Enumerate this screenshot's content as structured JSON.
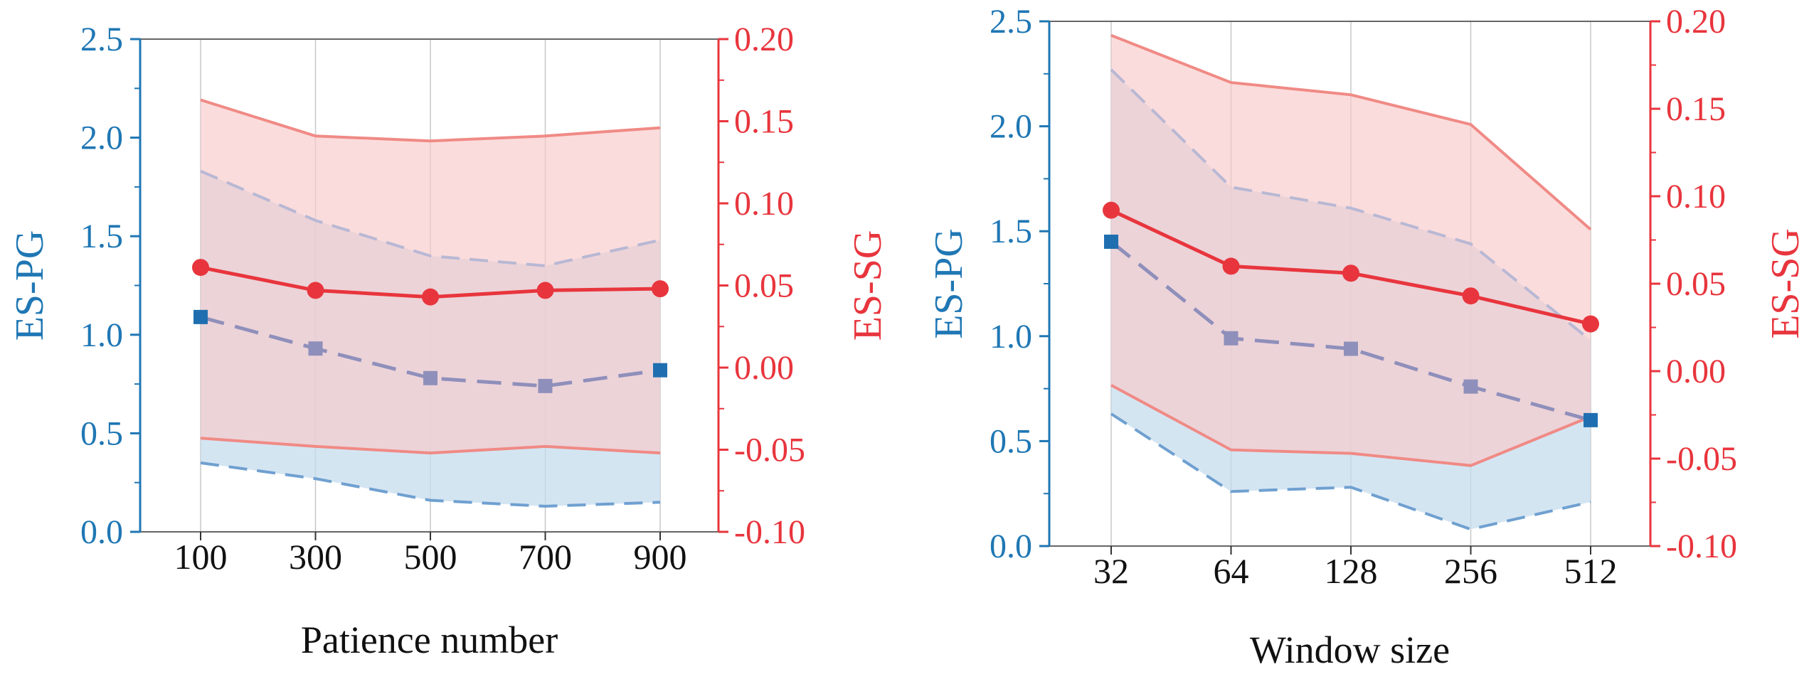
{
  "colors": {
    "left_axis": "#1f77b4",
    "right_axis": "#e8353d",
    "es_sg_line": "#e8353d",
    "es_sg_band_edge": "#f08a85",
    "es_sg_band_fill": "#f9c9ca",
    "es_pg_line": "#8f8fbb",
    "es_pg_marker_end": "#1f6fb0",
    "es_pg_band_upper_edge": "#b8b8d4",
    "es_pg_band_lower_edge": "#6fa0d0",
    "es_pg_band_fill": "#c6dcee",
    "grid": "#c8c8c8",
    "frame": "#666666"
  },
  "chart_data": [
    {
      "type": "line",
      "xlabel": "Patience number",
      "ylabel_left": "ES-PG",
      "ylabel_right": "ES-SG",
      "categories": [
        "100",
        "300",
        "500",
        "700",
        "900"
      ],
      "ylim_left": [
        0,
        2.5
      ],
      "ylim_right": [
        -0.1,
        0.2
      ],
      "yticks_left": [
        "0.0",
        "0.5",
        "1.0",
        "1.5",
        "2.0",
        "2.5"
      ],
      "yticks_right": [
        "-0.10",
        "-0.05",
        "0.00",
        "0.05",
        "0.10",
        "0.15",
        "0.20"
      ],
      "grid": "vertical",
      "series": [
        {
          "axis": "left",
          "style": "dashed-square",
          "values": [
            1.09,
            0.93,
            0.78,
            0.74,
            0.82
          ],
          "band_upper": [
            1.83,
            1.58,
            1.4,
            1.35,
            1.48
          ],
          "band_lower": [
            0.35,
            0.27,
            0.16,
            0.13,
            0.15
          ]
        },
        {
          "axis": "right",
          "style": "solid-circle",
          "values": [
            0.061,
            0.047,
            0.043,
            0.047,
            0.048
          ],
          "band_upper": [
            0.163,
            0.141,
            0.138,
            0.141,
            0.146
          ],
          "band_lower": [
            -0.043,
            -0.048,
            -0.052,
            -0.048,
            -0.052
          ]
        }
      ]
    },
    {
      "type": "line",
      "xlabel": "Window size",
      "ylabel_left": "ES-PG",
      "ylabel_right": "ES-SG",
      "categories": [
        "32",
        "64",
        "128",
        "256",
        "512"
      ],
      "ylim_left": [
        0,
        2.5
      ],
      "ylim_right": [
        -0.1,
        0.2
      ],
      "yticks_left": [
        "0.0",
        "0.5",
        "1.0",
        "1.5",
        "2.0",
        "2.5"
      ],
      "yticks_right": [
        "-0.10",
        "-0.05",
        "0.00",
        "0.05",
        "0.10",
        "0.15",
        "0.20"
      ],
      "grid": "vertical",
      "series": [
        {
          "axis": "left",
          "style": "dashed-square",
          "values": [
            1.45,
            0.99,
            0.94,
            0.76,
            0.6
          ],
          "band_upper": [
            2.27,
            1.71,
            1.61,
            1.44,
            0.98
          ],
          "band_lower": [
            0.63,
            0.26,
            0.28,
            0.08,
            0.21
          ]
        },
        {
          "axis": "right",
          "style": "solid-circle",
          "values": [
            0.092,
            0.06,
            0.056,
            0.043,
            0.027
          ],
          "band_upper": [
            0.192,
            0.165,
            0.158,
            0.141,
            0.081
          ],
          "band_lower": [
            -0.008,
            -0.045,
            -0.047,
            -0.054,
            -0.026
          ]
        }
      ]
    }
  ]
}
